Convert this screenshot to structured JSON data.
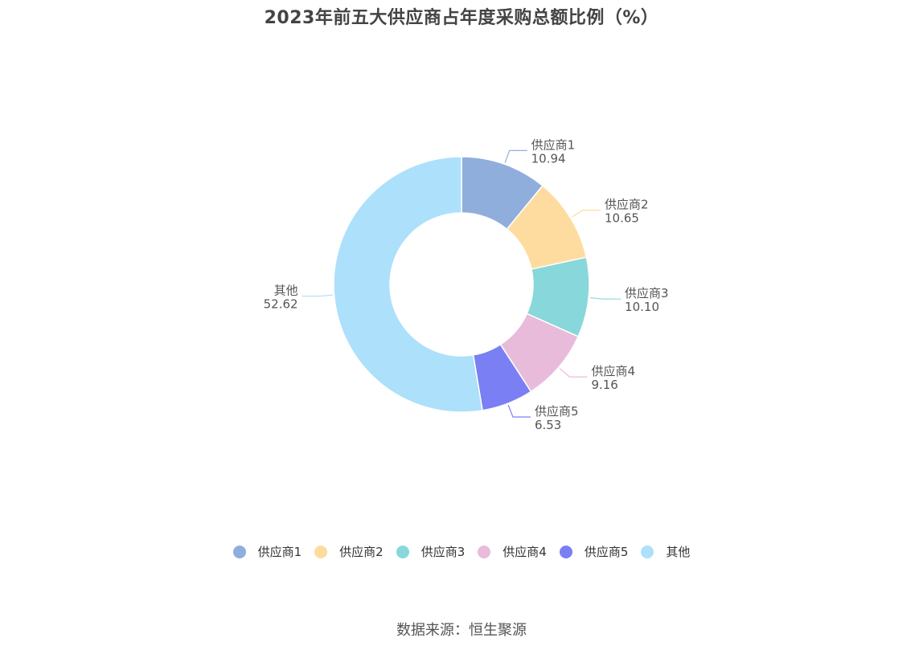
{
  "chart_data": {
    "type": "pie",
    "title": "2023年前五大供应商占年度采购总额比例（%）",
    "style": "donut",
    "categories": [
      "供应商1",
      "供应商2",
      "供应商3",
      "供应商4",
      "供应商5",
      "其他"
    ],
    "values": [
      10.94,
      10.65,
      10.1,
      9.16,
      6.53,
      52.62
    ],
    "value_labels": [
      "10.94",
      "10.65",
      "10.10",
      "9.16",
      "6.53",
      "52.62"
    ],
    "colors": [
      "#8faedc",
      "#fedc9f",
      "#88d7da",
      "#e8bbdb",
      "#7b7ff4",
      "#ade0fa"
    ],
    "legend_position": "bottom"
  },
  "footer": {
    "source": "数据来源：恒生聚源"
  }
}
